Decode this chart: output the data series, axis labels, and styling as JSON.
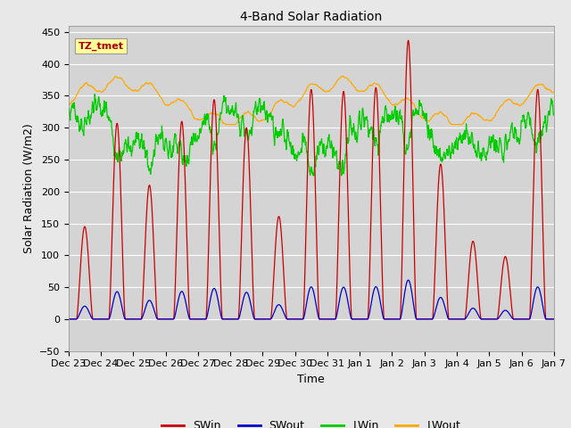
{
  "title": "4-Band Solar Radiation",
  "xlabel": "Time",
  "ylabel": "Solar Radiation (W/m2)",
  "ylim": [
    -50,
    460
  ],
  "yticks": [
    -50,
    0,
    50,
    100,
    150,
    200,
    250,
    300,
    350,
    400,
    450
  ],
  "background_color": "#e8e8e8",
  "plot_bg_color": "#d4d4d4",
  "grid_color": "#ffffff",
  "legend_labels": [
    "SWin",
    "SWout",
    "LWin",
    "LWout"
  ],
  "legend_colors": [
    "#cc0000",
    "#0000cc",
    "#00cc00",
    "#ffaa00"
  ],
  "annotation_text": "TZ_tmet",
  "annotation_color": "#aa0000",
  "annotation_bg": "#ffff99",
  "tick_labels": [
    "Dec 23",
    "Dec 24",
    "Dec 25",
    "Dec 26",
    "Dec 27",
    "Dec 28",
    "Dec 29",
    "Dec 30",
    "Dec 31",
    "Jan 1",
    "Jan 2",
    "Jan 3",
    "Jan 4",
    "Jan 5",
    "Jan 6",
    "Jan 7"
  ],
  "day_peaks_SWin": [
    145,
    307,
    210,
    310,
    344,
    300,
    161,
    360,
    357,
    363,
    437,
    243,
    122,
    98,
    360
  ],
  "n_days": 15
}
